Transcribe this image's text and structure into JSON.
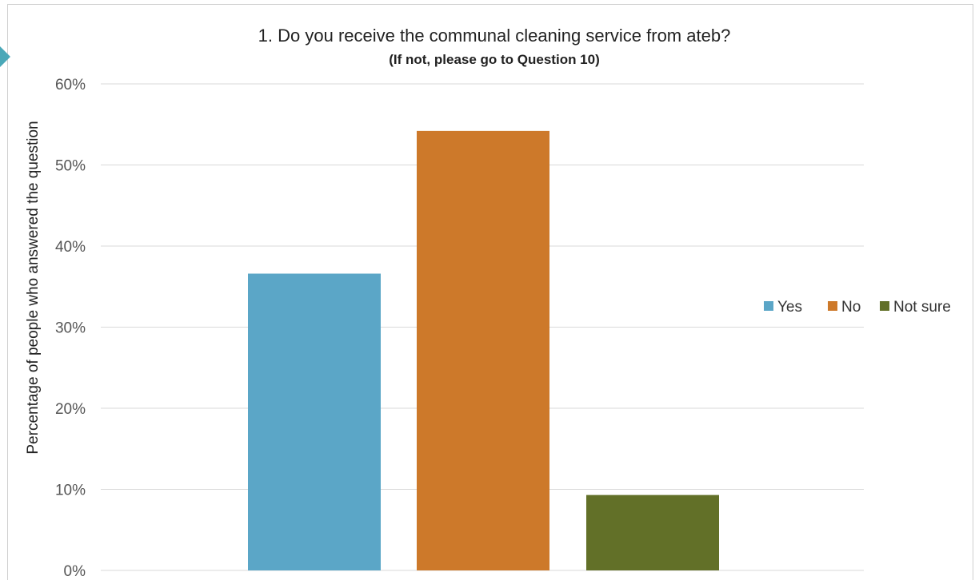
{
  "chart_data": {
    "type": "bar",
    "title": "1. Do you receive the communal cleaning service from ateb?",
    "subtitle": "(If not, please go to Question 10)",
    "xlabel": "",
    "ylabel": "Percentage of people who answered the question",
    "categories": [
      "Yes",
      "No",
      "Not sure"
    ],
    "values": [
      36.6,
      54.2,
      9.3
    ],
    "colors": [
      "#5ba6c7",
      "#cd792a",
      "#627028"
    ],
    "ylim": [
      0,
      60
    ],
    "yticks": [
      0,
      10,
      20,
      30,
      40,
      50,
      60
    ],
    "ytick_labels": [
      "0%",
      "10%",
      "20%",
      "30%",
      "40%",
      "50%",
      "60%"
    ],
    "legend": {
      "position": "right",
      "entries": [
        "Yes",
        "No",
        "Not sure"
      ]
    },
    "grid": true
  }
}
